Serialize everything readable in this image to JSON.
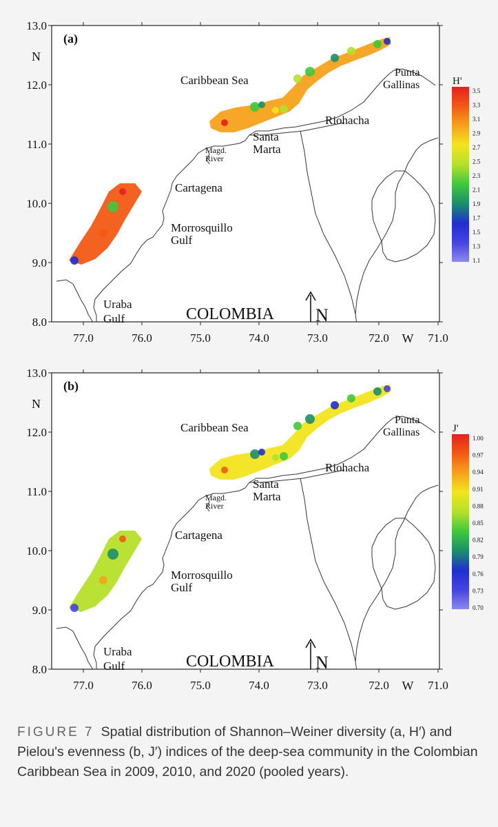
{
  "panels": [
    {
      "id": "a",
      "tag": "(a)",
      "legend_title": "H'",
      "legend_ticks": [
        "3.5",
        "3.3",
        "3.1",
        "2.9",
        "2.7",
        "2.5",
        "2.3",
        "2.1",
        "1.9",
        "1.7",
        "1.5",
        "1.3",
        "1.1"
      ]
    },
    {
      "id": "b",
      "tag": "(b)",
      "legend_title": "J'",
      "legend_ticks": [
        "1.00",
        "0.97",
        "0.94",
        "0.91",
        "0.88",
        "0.85",
        "0.82",
        "0.79",
        "0.76",
        "0.73",
        "0.70"
      ]
    }
  ],
  "axes": {
    "y_ticks": [
      "13.0",
      "12.0",
      "11.0",
      "10.0",
      "9.0",
      "8.0"
    ],
    "x_ticks": [
      "77.0",
      "76.0",
      "75.0",
      "74.0",
      "73.0",
      "72.0",
      "71.0"
    ],
    "y_unit": "N",
    "x_unit": "W"
  },
  "places": {
    "sea": "Caribbean Sea",
    "punta_1": "Punta",
    "punta_2": "Gallinas",
    "riohacha": "Riohacha",
    "santa_1": "Santa",
    "santa_2": "Marta",
    "magd_1": "Magd.",
    "magd_2": "River",
    "cartagena": "Cartagena",
    "morros_1": "Morrosquillo",
    "morros_2": "Gulf",
    "uraba_1": "Uraba",
    "uraba_2": "Gulf",
    "country": "COLOMBIA",
    "north": "N"
  },
  "colors": {
    "scale": [
      "#e52020",
      "#f25a14",
      "#f7a21b",
      "#f2e51f",
      "#b5e02a",
      "#3fc83d",
      "#1b8f6a",
      "#1f2fd0",
      "#4444e0",
      "#8a8af0"
    ]
  },
  "caption": {
    "label": "FIGURE 7",
    "text": "Spatial distribution of Shannon–Weiner diversity (a, H′) and Pielou's evenness (b, J′) indices of the deep-sea community in the Colombian Caribbean Sea in 2009, 2010, and 2020 (pooled years)."
  }
}
